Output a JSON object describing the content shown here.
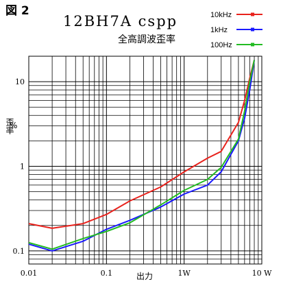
{
  "figure_label": "図 2",
  "chart_data": {
    "type": "line",
    "title": "12BH7A cspp",
    "subtitle": "全高調波歪率",
    "xlabel": "出力",
    "ylabel": "歪率",
    "yunit": "%",
    "xscale": "log",
    "yscale": "log",
    "xlim": [
      0.01,
      10
    ],
    "ylim": [
      0.07,
      20
    ],
    "x_ticks": [
      {
        "value": 0.01,
        "label": "0.01"
      },
      {
        "value": 0.1,
        "label": "0.1"
      },
      {
        "value": 1,
        "label": "1W"
      },
      {
        "value": 10,
        "label": "10 W"
      }
    ],
    "y_ticks": [
      {
        "value": 0.1,
        "label": "0.1"
      },
      {
        "value": 1,
        "label": "1"
      },
      {
        "value": 10,
        "label": "10"
      }
    ],
    "grid": true,
    "legend_position": "top-right",
    "series": [
      {
        "name": "10kHz",
        "color": "#e8221c",
        "points": [
          [
            0.01,
            0.21
          ],
          [
            0.02,
            0.185
          ],
          [
            0.05,
            0.21
          ],
          [
            0.1,
            0.27
          ],
          [
            0.2,
            0.39
          ],
          [
            0.5,
            0.57
          ],
          [
            1,
            0.86
          ],
          [
            2,
            1.25
          ],
          [
            3,
            1.5
          ],
          [
            5,
            3.3
          ],
          [
            6,
            6.0
          ],
          [
            7,
            11.0
          ],
          [
            8,
            18.0
          ]
        ]
      },
      {
        "name": "1kHz",
        "color": "#1a1aff",
        "points": [
          [
            0.01,
            0.12
          ],
          [
            0.02,
            0.1
          ],
          [
            0.05,
            0.13
          ],
          [
            0.1,
            0.18
          ],
          [
            0.2,
            0.23
          ],
          [
            0.5,
            0.33
          ],
          [
            1,
            0.47
          ],
          [
            2,
            0.6
          ],
          [
            3,
            0.86
          ],
          [
            5,
            2.0
          ],
          [
            6,
            3.7
          ],
          [
            7,
            8.0
          ],
          [
            8,
            18.0
          ]
        ]
      },
      {
        "name": "100Hz",
        "color": "#22bb22",
        "points": [
          [
            0.01,
            0.125
          ],
          [
            0.02,
            0.105
          ],
          [
            0.05,
            0.14
          ],
          [
            0.1,
            0.17
          ],
          [
            0.2,
            0.215
          ],
          [
            0.5,
            0.35
          ],
          [
            1,
            0.52
          ],
          [
            2,
            0.7
          ],
          [
            3,
            0.97
          ],
          [
            5,
            2.1
          ],
          [
            6,
            4.5
          ],
          [
            7,
            10.0
          ],
          [
            8,
            18.0
          ]
        ]
      }
    ]
  }
}
